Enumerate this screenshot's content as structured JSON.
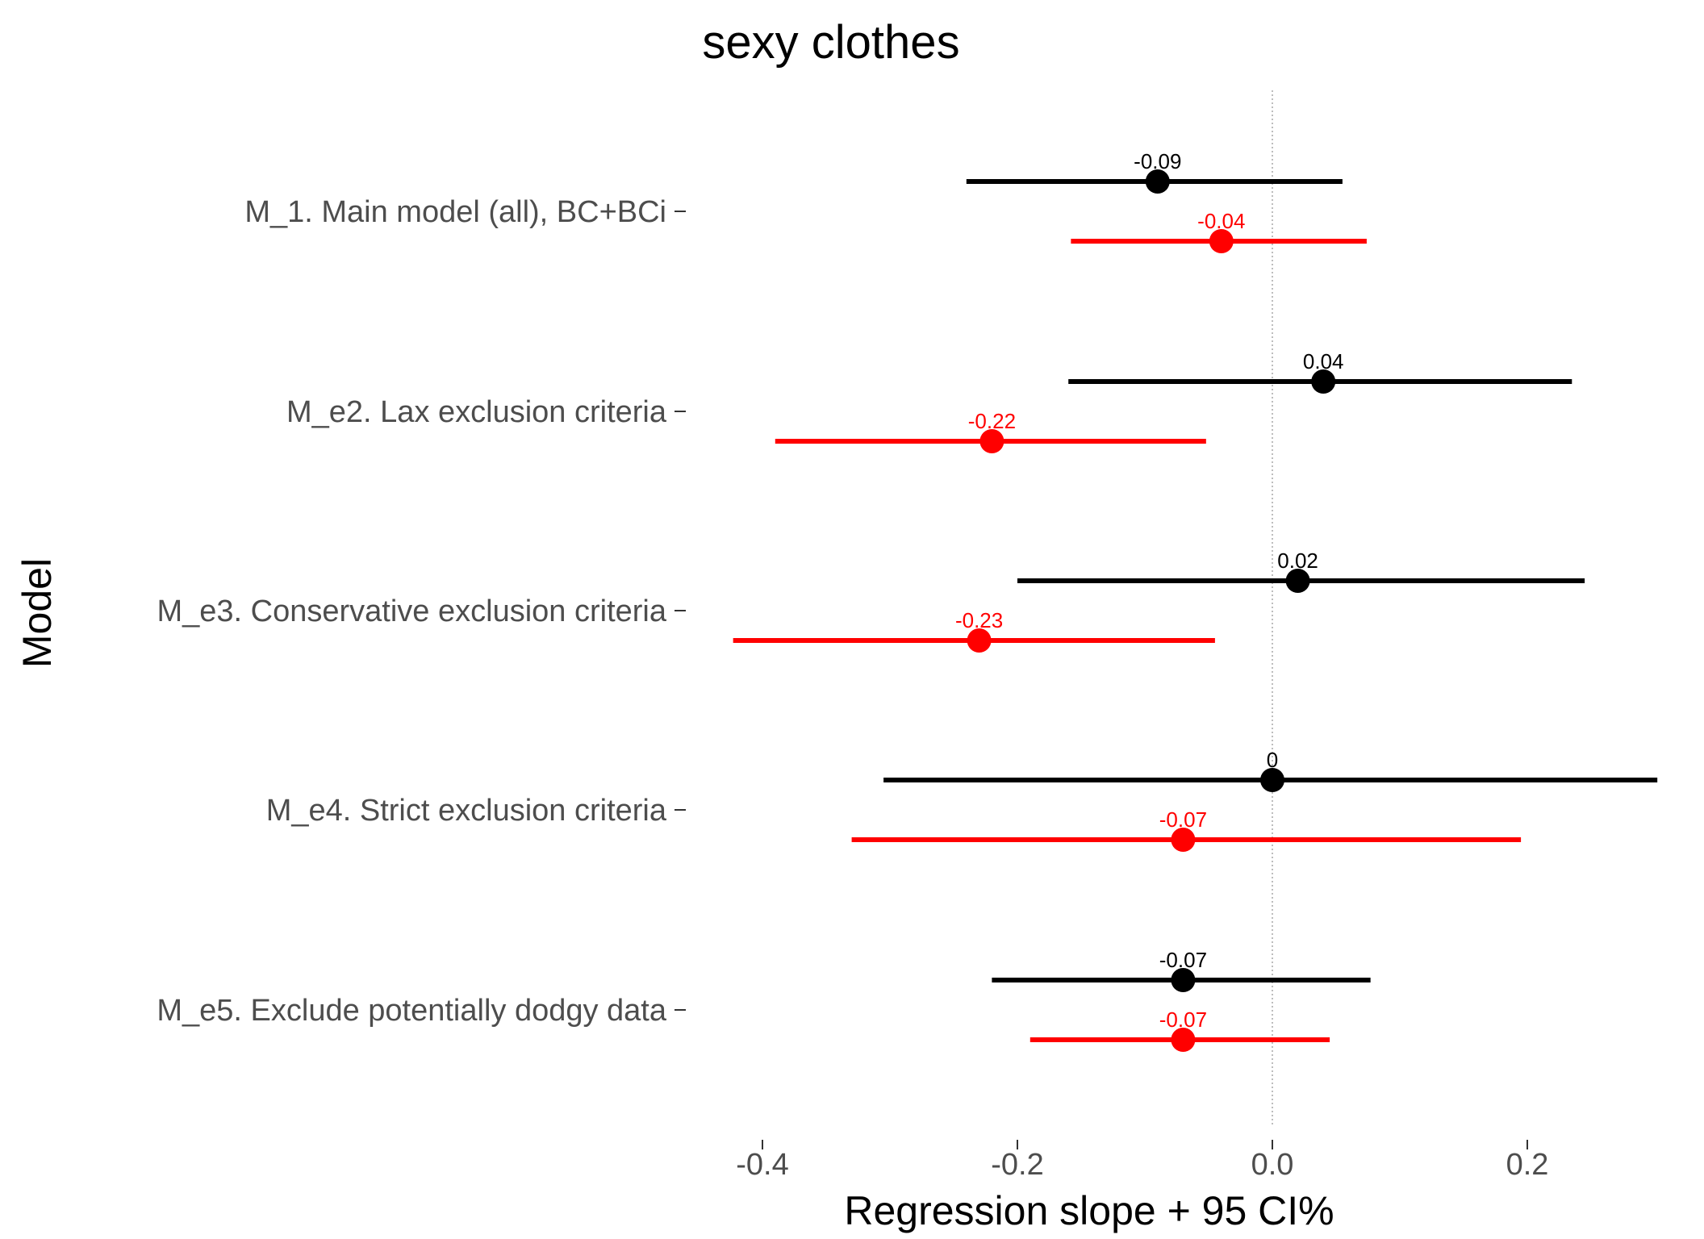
{
  "chart_data": {
    "type": "forest",
    "title": "sexy clothes",
    "xlabel": "Regression slope + 95 CI%",
    "ylabel": "Model",
    "xlim": [
      -0.42,
      0.3
    ],
    "x_ticks": [
      -0.4,
      -0.2,
      0.0,
      0.2
    ],
    "x_tick_labels": [
      "-0.4",
      "-0.2",
      "0.0",
      "0.2"
    ],
    "reference_line": 0,
    "categories": [
      "M_1. Main model (all), BC+BCi",
      "M_e2. Lax exclusion criteria",
      "M_e3. Conservative exclusion criteria",
      "M_e4. Strict exclusion criteria",
      "M_e5. Exclude potentially dodgy data"
    ],
    "series": [
      {
        "color": "#000000",
        "estimates": [
          -0.09,
          0.04,
          0.02,
          0,
          -0.07
        ],
        "lower": [
          -0.24,
          -0.16,
          -0.2,
          -0.305,
          -0.22
        ],
        "upper": [
          0.055,
          0.235,
          0.245,
          0.302,
          0.077
        ],
        "labels": [
          "-0.09",
          "0.04",
          "0.02",
          "0",
          "-0.07"
        ]
      },
      {
        "color": "#ff0000",
        "estimates": [
          -0.04,
          -0.22,
          -0.23,
          -0.07,
          -0.07
        ],
        "lower": [
          -0.158,
          -0.39,
          -0.423,
          -0.33,
          -0.19
        ],
        "upper": [
          0.074,
          -0.052,
          -0.045,
          0.195,
          0.045
        ],
        "labels": [
          "-0.04",
          "-0.22",
          "-0.23",
          "-0.07",
          "-0.07"
        ]
      }
    ]
  }
}
